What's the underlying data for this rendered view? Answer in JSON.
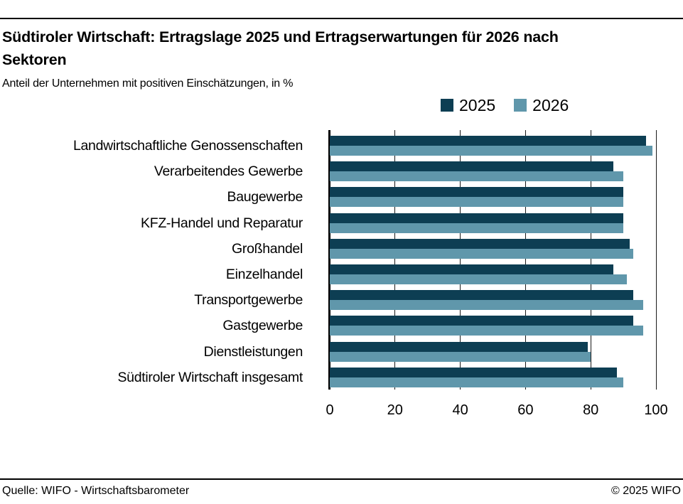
{
  "header": {
    "title_line1": "Südtiroler Wirtschaft: Ertragslage 2025 und Ertragserwartungen für 2026 nach",
    "title_line2": "Sektoren",
    "subtitle": "Anteil der Unternehmen mit positiven Einschätzungen, in %"
  },
  "footer": {
    "source": "Quelle: WIFO - Wirtschaftsbarometer",
    "copyright": "© 2025 WIFO"
  },
  "colors": {
    "series_2025": "#0d3e53",
    "series_2026": "#6097ab",
    "axis": "#000000",
    "gridline": "#1a1a1a",
    "text": "#000000"
  },
  "chart_data": {
    "type": "bar",
    "orientation": "horizontal",
    "title": "Südtiroler Wirtschaft: Ertragslage 2025 und Ertragserwartungen für 2026 nach Sektoren",
    "subtitle": "Anteil der Unternehmen mit positiven Einschätzungen, in %",
    "categories": [
      "Landwirtschaftliche Genossenschaften",
      "Verarbeitendes Gewerbe",
      "Baugewerbe",
      "KFZ-Handel und Reparatur",
      "Großhandel",
      "Einzelhandel",
      "Transportgewerbe",
      "Gastgewerbe",
      "Dienstleistungen",
      "Südtiroler Wirtschaft insgesamt"
    ],
    "series": [
      {
        "name": "2025",
        "color": "#0d3e53",
        "values": [
          97,
          87,
          90,
          90,
          92,
          87,
          93,
          93,
          79,
          88
        ]
      },
      {
        "name": "2026",
        "color": "#6097ab",
        "values": [
          99,
          90,
          90,
          90,
          93,
          91,
          96,
          96,
          80,
          90
        ]
      }
    ],
    "xlim": [
      0,
      100
    ],
    "xticks": [
      0,
      20,
      40,
      60,
      80,
      100
    ],
    "xlabel": "",
    "ylabel": "",
    "grid": "vertical",
    "legend_position": "top-right"
  }
}
